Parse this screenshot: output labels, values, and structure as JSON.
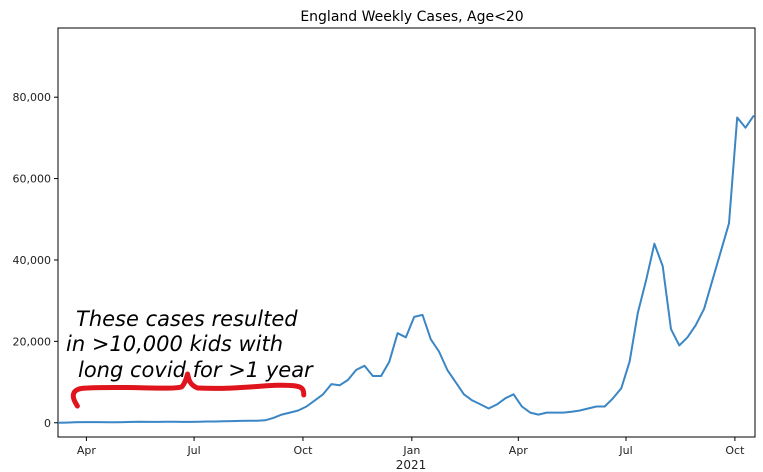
{
  "chart_data": {
    "type": "line",
    "title": "England Weekly Cases, Age<20",
    "xlabel": "2021",
    "ylabel": "",
    "grid": false,
    "legend": "none",
    "line_color": "#3b86c4",
    "annotation_color": "#e0141c",
    "xlim": [
      "2020-03-08",
      "2021-10-18"
    ],
    "ylim": [
      -3500,
      97000
    ],
    "x_ticks": [
      {
        "date": "2020-04-01",
        "label": "Apr"
      },
      {
        "date": "2020-07-01",
        "label": "Jul"
      },
      {
        "date": "2020-10-01",
        "label": "Oct"
      },
      {
        "date": "2021-01-01",
        "label": "Jan"
      },
      {
        "date": "2021-04-01",
        "label": "Apr"
      },
      {
        "date": "2021-07-01",
        "label": "Jul"
      },
      {
        "date": "2021-10-01",
        "label": "Oct"
      }
    ],
    "y_ticks": [
      {
        "value": 0,
        "label": "0"
      },
      {
        "value": 20000,
        "label": "20,000"
      },
      {
        "value": 40000,
        "label": "40,000"
      },
      {
        "value": 60000,
        "label": "60,000"
      },
      {
        "value": 80000,
        "label": "80,000"
      }
    ],
    "annotation_text": [
      "These cases resulted",
      "in >10,000 kids with",
      "long covid for >1 year"
    ],
    "annotation_span": [
      "2020-03-21",
      "2020-09-30"
    ],
    "series": [
      {
        "x": [
          "2020-03-08",
          "2020-03-15",
          "2020-03-22",
          "2020-03-29",
          "2020-04-05",
          "2020-04-12",
          "2020-04-19",
          "2020-04-26",
          "2020-05-03",
          "2020-05-10",
          "2020-05-17",
          "2020-05-24",
          "2020-05-31",
          "2020-06-07",
          "2020-06-14",
          "2020-06-21",
          "2020-06-28",
          "2020-07-05",
          "2020-07-12",
          "2020-07-19",
          "2020-07-26",
          "2020-08-02",
          "2020-08-09",
          "2020-08-16",
          "2020-08-23",
          "2020-08-30",
          "2020-09-06",
          "2020-09-13",
          "2020-09-20",
          "2020-09-27",
          "2020-10-04",
          "2020-10-11",
          "2020-10-18",
          "2020-10-25",
          "2020-11-01",
          "2020-11-08",
          "2020-11-15",
          "2020-11-22",
          "2020-11-29",
          "2020-12-06",
          "2020-12-13",
          "2020-12-20",
          "2020-12-27",
          "2021-01-03",
          "2021-01-10",
          "2021-01-17",
          "2021-01-24",
          "2021-01-31",
          "2021-02-07",
          "2021-02-14",
          "2021-02-21",
          "2021-02-28",
          "2021-03-07",
          "2021-03-14",
          "2021-03-21",
          "2021-03-28",
          "2021-04-04",
          "2021-04-11",
          "2021-04-18",
          "2021-04-25",
          "2021-05-02",
          "2021-05-09",
          "2021-05-16",
          "2021-05-23",
          "2021-05-30",
          "2021-06-06",
          "2021-06-13",
          "2021-06-20",
          "2021-06-27",
          "2021-07-04",
          "2021-07-11",
          "2021-07-18",
          "2021-07-25",
          "2021-08-01",
          "2021-08-08",
          "2021-08-15",
          "2021-08-22",
          "2021-08-29",
          "2021-09-05",
          "2021-09-12",
          "2021-09-19",
          "2021-09-26",
          "2021-10-03",
          "2021-10-10",
          "2021-10-17"
        ],
        "values": [
          0,
          50,
          100,
          150,
          150,
          150,
          100,
          100,
          150,
          200,
          250,
          200,
          200,
          250,
          250,
          200,
          200,
          250,
          300,
          300,
          350,
          400,
          450,
          500,
          500,
          600,
          1200,
          2000,
          2500,
          3000,
          4000,
          5500,
          7000,
          9500,
          9200,
          10500,
          13000,
          14000,
          11500,
          11500,
          15000,
          22000,
          21000,
          26000,
          26500,
          20500,
          17500,
          13000,
          10000,
          7000,
          5500,
          4500,
          3500,
          4500,
          6000,
          7000,
          4000,
          2500,
          2000,
          2500,
          2500,
          2500,
          2700,
          3000,
          3500,
          4000,
          4000,
          6000,
          8500,
          15000,
          27000,
          35000,
          44000,
          38500,
          23000,
          19000,
          21000,
          24000,
          28000,
          35000,
          42000,
          49000,
          75000,
          72500,
          75500
        ]
      }
    ]
  }
}
